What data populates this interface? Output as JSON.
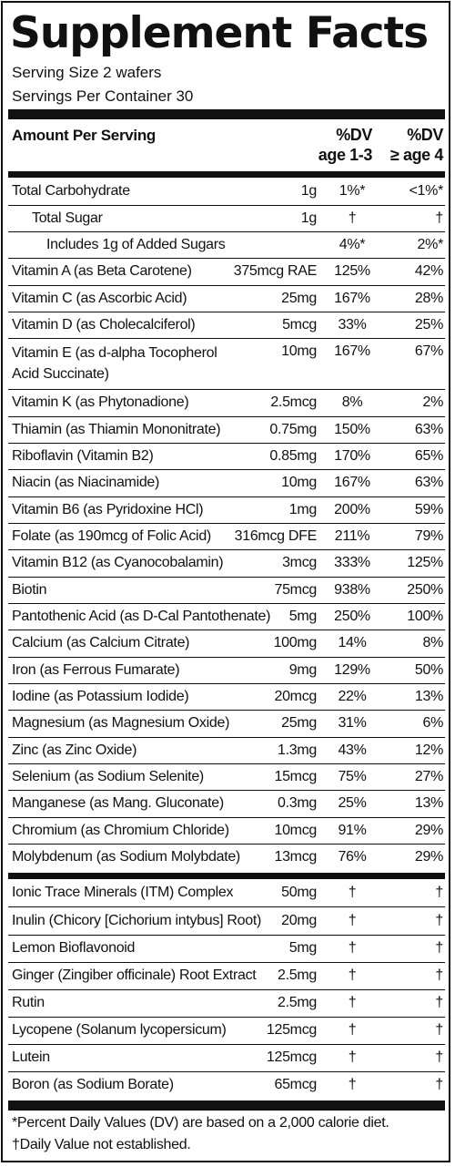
{
  "title": "Supplement Facts",
  "serving_size": "Serving Size 2 wafers",
  "servings_per_container": "Servings Per Container 30",
  "header": {
    "amount_per_serving": "Amount Per Serving",
    "col1_line1": "%DV",
    "col1_line2": "age 1-3",
    "col2_line1": "%DV",
    "col2_line2": "≥ age 4"
  },
  "section1": [
    {
      "name": "Total Carbohydrate",
      "amount": "1g",
      "dv1": "1%*",
      "dv2": "<1%*"
    },
    {
      "name": "Total Sugar",
      "amount": "1g",
      "dv1": "†",
      "dv2": "†"
    },
    {
      "name": "Includes 1g of Added Sugars",
      "amount": "",
      "dv1": "4%*",
      "dv2": "2%*"
    },
    {
      "name": "Vitamin A (as Beta Carotene)",
      "amount": "375mcg RAE",
      "dv1": "125%",
      "dv2": "42%"
    },
    {
      "name": "Vitamin C (as Ascorbic Acid)",
      "amount": "25mg",
      "dv1": "167%",
      "dv2": "28%"
    },
    {
      "name": "Vitamin D (as Cholecalciferol)",
      "amount": "5mcg",
      "dv1": "33%",
      "dv2": "25%"
    },
    {
      "name": "Vitamin E (as d-alpha Tocopherol Acid Succinate)",
      "amount": "10mg",
      "dv1": "167%",
      "dv2": "67%"
    },
    {
      "name": "Vitamin K (as Phytonadione)",
      "amount": "2.5mcg",
      "dv1": "8%",
      "dv2": "2%"
    },
    {
      "name": "Thiamin (as Thiamin Mononitrate)",
      "amount": "0.75mg",
      "dv1": "150%",
      "dv2": "63%"
    },
    {
      "name": "Riboflavin (Vitamin B2)",
      "amount": "0.85mg",
      "dv1": "170%",
      "dv2": "65%"
    },
    {
      "name": "Niacin (as Niacinamide)",
      "amount": "10mg",
      "dv1": "167%",
      "dv2": "63%"
    },
    {
      "name": "Vitamin B6 (as Pyridoxine HCl)",
      "amount": "1mg",
      "dv1": "200%",
      "dv2": "59%"
    },
    {
      "name": "Folate (as 190mcg of Folic Acid)",
      "amount": "316mcg DFE",
      "dv1": "211%",
      "dv2": "79%"
    },
    {
      "name": "Vitamin B12 (as Cyanocobalamin)",
      "amount": "3mcg",
      "dv1": "333%",
      "dv2": "125%"
    },
    {
      "name": "Biotin",
      "amount": "75mcg",
      "dv1": "938%",
      "dv2": "250%"
    },
    {
      "name": "Pantothenic Acid (as D-Cal Pantothenate)",
      "amount": "5mg",
      "dv1": "250%",
      "dv2": "100%"
    },
    {
      "name": "Calcium (as Calcium Citrate)",
      "amount": "100mg",
      "dv1": "14%",
      "dv2": "8%"
    },
    {
      "name": "Iron (as Ferrous Fumarate)",
      "amount": "9mg",
      "dv1": "129%",
      "dv2": "50%"
    },
    {
      "name": "Iodine (as Potassium Iodide)",
      "amount": "20mcg",
      "dv1": "22%",
      "dv2": "13%"
    },
    {
      "name": "Magnesium (as Magnesium Oxide)",
      "amount": "25mg",
      "dv1": "31%",
      "dv2": "6%"
    },
    {
      "name": "Zinc (as Zinc Oxide)",
      "amount": "1.3mg",
      "dv1": "43%",
      "dv2": "12%"
    },
    {
      "name": "Selenium (as Sodium Selenite)",
      "amount": "15mcg",
      "dv1": "75%",
      "dv2": "27%"
    },
    {
      "name": "Manganese (as Mang. Gluconate)",
      "amount": "0.3mg",
      "dv1": "25%",
      "dv2": "13%"
    },
    {
      "name": "Chromium (as Chromium Chloride)",
      "amount": "10mcg",
      "dv1": "91%",
      "dv2": "29%"
    },
    {
      "name": "Molybdenum (as Sodium Molybdate)",
      "amount": "13mcg",
      "dv1": "76%",
      "dv2": "29%"
    }
  ],
  "section2": [
    {
      "name": "Ionic Trace Minerals (ITM) Complex",
      "amount": "50mg",
      "dv1": "†",
      "dv2": "†"
    },
    {
      "name": "Inulin (Chicory [Cichorium intybus] Root)",
      "amount": "20mg",
      "dv1": "†",
      "dv2": "†"
    },
    {
      "name": "Lemon Bioflavonoid",
      "amount": "5mg",
      "dv1": "†",
      "dv2": "†"
    },
    {
      "name": "Ginger (Zingiber officinale) Root Extract",
      "amount": "2.5mg",
      "dv1": "†",
      "dv2": "†"
    },
    {
      "name": "Rutin",
      "amount": "2.5mg",
      "dv1": "†",
      "dv2": "†"
    },
    {
      "name": "Lycopene (Solanum lycopersicum)",
      "amount": "125mcg",
      "dv1": "†",
      "dv2": "†"
    },
    {
      "name": "Lutein",
      "amount": "125mcg",
      "dv1": "†",
      "dv2": "†"
    },
    {
      "name": "Boron (as Sodium Borate)",
      "amount": "65mcg",
      "dv1": "†",
      "dv2": "†"
    }
  ],
  "footnotes": [
    "*Percent Daily Values (DV) are based on a 2,000 calorie diet.",
    "†Daily Value not established."
  ]
}
